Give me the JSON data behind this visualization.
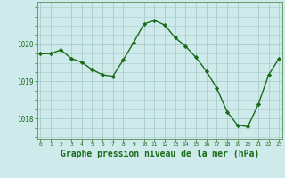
{
  "x": [
    0,
    1,
    2,
    3,
    4,
    5,
    6,
    7,
    8,
    9,
    10,
    11,
    12,
    13,
    14,
    15,
    16,
    17,
    18,
    19,
    20,
    21,
    22,
    23
  ],
  "y": [
    1019.75,
    1019.75,
    1019.85,
    1019.62,
    1019.52,
    1019.32,
    1019.18,
    1019.14,
    1019.58,
    1020.05,
    1020.55,
    1020.65,
    1020.52,
    1020.18,
    1019.95,
    1019.65,
    1019.28,
    1018.82,
    1018.18,
    1017.82,
    1017.78,
    1018.38,
    1019.18,
    1019.62
  ],
  "line_color": "#1a6b1a",
  "marker_color": "#1a6b1a",
  "bg_color": "#ceeaea",
  "grid_color": "#aacccc",
  "spine_color": "#6a9a6a",
  "tick_color": "#1a6b1a",
  "xlabel": "Graphe pression niveau de la mer (hPa)",
  "xlabel_fontsize": 7,
  "ylabel_ticks": [
    1018,
    1019,
    1020
  ],
  "ylim": [
    1017.45,
    1021.15
  ],
  "xlim": [
    -0.3,
    23.3
  ]
}
